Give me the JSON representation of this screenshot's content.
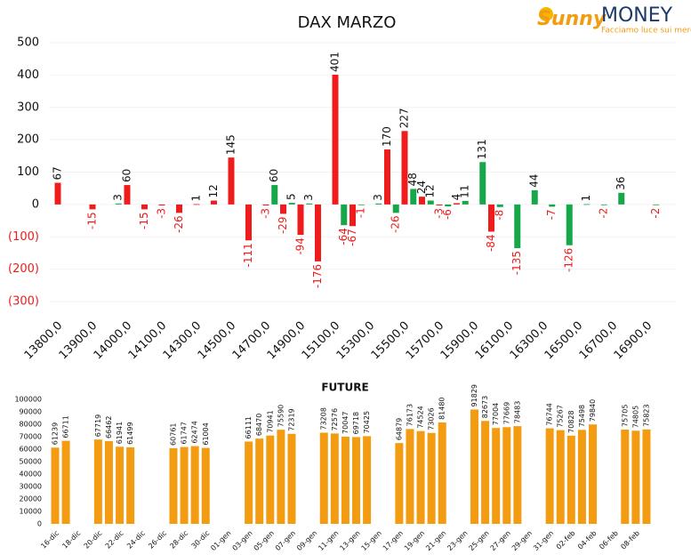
{
  "logo": {
    "brand_first": "Sunny",
    "brand_second": "MONEY",
    "tagline": "Facciamo luce sui mercati"
  },
  "chart_data": [
    {
      "type": "bar",
      "title": "DAX MARZO",
      "categories": [
        "13800,0",
        null,
        null,
        null,
        "13900,0",
        null,
        null,
        null,
        "14000,0",
        null,
        null,
        null,
        "14100,0",
        null,
        null,
        null,
        "14300,0",
        null,
        null,
        null,
        "14500,0",
        null,
        null,
        null,
        "14700,0",
        null,
        null,
        null,
        "14900,0",
        null,
        null,
        null,
        "15100,0",
        null,
        null,
        null,
        "15300,0",
        null,
        null,
        null,
        "15500,0",
        null,
        null,
        null,
        "15700,0",
        null,
        null,
        null,
        "15900,0",
        null,
        null,
        null,
        "16100,0",
        null,
        null,
        null,
        "16300,0",
        null,
        null,
        null,
        "16500,0",
        null,
        null,
        null,
        "16700,0",
        null,
        null,
        null,
        "16900,0",
        null,
        null
      ],
      "series": [
        {
          "color": "#ee1c1c",
          "values": [
            67,
            null,
            null,
            null,
            -15,
            null,
            null,
            null,
            60,
            null,
            -15,
            null,
            -3,
            null,
            -26,
            null,
            1,
            null,
            12,
            null,
            145,
            null,
            -111,
            null,
            -3,
            null,
            -29,
            null,
            -94,
            null,
            -176,
            null,
            401,
            null,
            -67,
            null,
            null,
            null,
            170,
            null,
            227,
            null,
            24,
            null,
            -3,
            null,
            4,
            null,
            null,
            null,
            -84,
            null,
            null,
            null,
            null,
            null,
            null,
            null,
            null,
            null,
            null,
            null,
            null,
            null,
            null,
            null,
            null,
            null,
            null,
            null,
            null
          ]
        },
        {
          "color": "#16a74b",
          "values": [
            null,
            null,
            null,
            null,
            null,
            null,
            null,
            3,
            null,
            null,
            null,
            null,
            null,
            null,
            null,
            null,
            null,
            null,
            null,
            null,
            null,
            null,
            null,
            null,
            null,
            60,
            null,
            5,
            null,
            3,
            null,
            null,
            null,
            -64,
            null,
            -1,
            null,
            3,
            null,
            -26,
            null,
            48,
            null,
            12,
            null,
            -6,
            null,
            11,
            null,
            131,
            null,
            -8,
            null,
            -135,
            null,
            44,
            null,
            -7,
            null,
            -126,
            null,
            1,
            null,
            -2,
            null,
            36,
            null,
            null,
            null,
            -2,
            null
          ]
        }
      ],
      "ylim": [
        -300,
        500
      ],
      "yticks": [
        {
          "value": -300,
          "label": "(300)"
        },
        {
          "value": -200,
          "label": "(200)"
        },
        {
          "value": -100,
          "label": "(100)"
        },
        0,
        100,
        200,
        300,
        400,
        500
      ],
      "negative_color": "#ee1c1c",
      "grid": true
    },
    {
      "type": "bar",
      "title": "FUTURE",
      "categories": [
        "16-dic",
        null,
        "18-dic",
        null,
        "20-dic",
        null,
        "22-dic",
        null,
        "24-dic",
        null,
        "26-dic",
        null,
        "28-dic",
        null,
        "30-dic",
        null,
        "01-gen",
        null,
        "03-gen",
        null,
        "05-gen",
        null,
        "07-gen",
        null,
        "09-gen",
        null,
        "11-gen",
        null,
        "13-gen",
        null,
        "15-gen",
        null,
        "17-gen",
        null,
        "19-gen",
        null,
        "21-gen",
        null,
        "23-gen",
        null,
        "25-gen",
        null,
        "27-gen",
        null,
        "29-gen",
        null,
        "31-gen",
        null,
        "02-feb",
        null,
        "04-feb",
        null,
        "06-feb",
        null,
        "08-feb",
        null
      ],
      "series": [
        {
          "color": "#f39c12",
          "values": [
            61239,
            66711,
            null,
            null,
            67719,
            66462,
            61941,
            61499,
            null,
            null,
            null,
            60761,
            61747,
            62474,
            61004,
            null,
            null,
            null,
            66111,
            68470,
            70941,
            75590,
            72319,
            null,
            null,
            73208,
            72576,
            70047,
            69718,
            70425,
            null,
            null,
            64879,
            76173,
            74524,
            73026,
            81480,
            null,
            null,
            91829,
            82673,
            77004,
            77669,
            78483,
            null,
            null,
            76744,
            75267,
            70828,
            75498,
            79840,
            null,
            null,
            75705,
            74805,
            75823
          ]
        }
      ],
      "ylim": [
        0,
        100000
      ],
      "yticks": [
        0,
        10000,
        20000,
        30000,
        40000,
        50000,
        60000,
        70000,
        80000,
        90000,
        100000
      ],
      "grid": false
    }
  ]
}
